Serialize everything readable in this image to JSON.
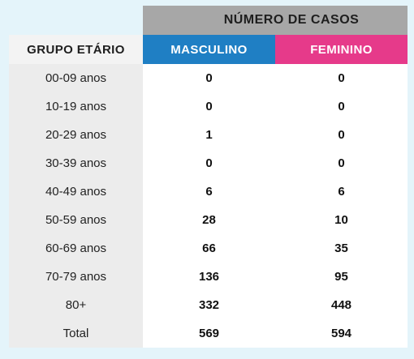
{
  "table": {
    "header_top": "NÚMERO DE CASOS",
    "col_group": "GRUPO ETÁRIO",
    "col_male": "MASCULINO",
    "col_female": "FEMININO",
    "rows": [
      {
        "group": "00-09 anos",
        "male": "0",
        "female": "0"
      },
      {
        "group": "10-19 anos",
        "male": "0",
        "female": "0"
      },
      {
        "group": "20-29 anos",
        "male": "1",
        "female": "0"
      },
      {
        "group": "30-39 anos",
        "male": "0",
        "female": "0"
      },
      {
        "group": "40-49 anos",
        "male": "6",
        "female": "6"
      },
      {
        "group": "50-59 anos",
        "male": "28",
        "female": "10"
      },
      {
        "group": "60-69 anos",
        "male": "66",
        "female": "35"
      },
      {
        "group": "70-79 anos",
        "male": "136",
        "female": "95"
      },
      {
        "group": "80+",
        "male": "332",
        "female": "448"
      },
      {
        "group": "Total",
        "male": "569",
        "female": "594"
      }
    ]
  },
  "colors": {
    "male_header": "#1f7fc4",
    "female_header": "#e63a8a",
    "top_header": "#a7a7a7",
    "background": "#e4f4fa"
  }
}
